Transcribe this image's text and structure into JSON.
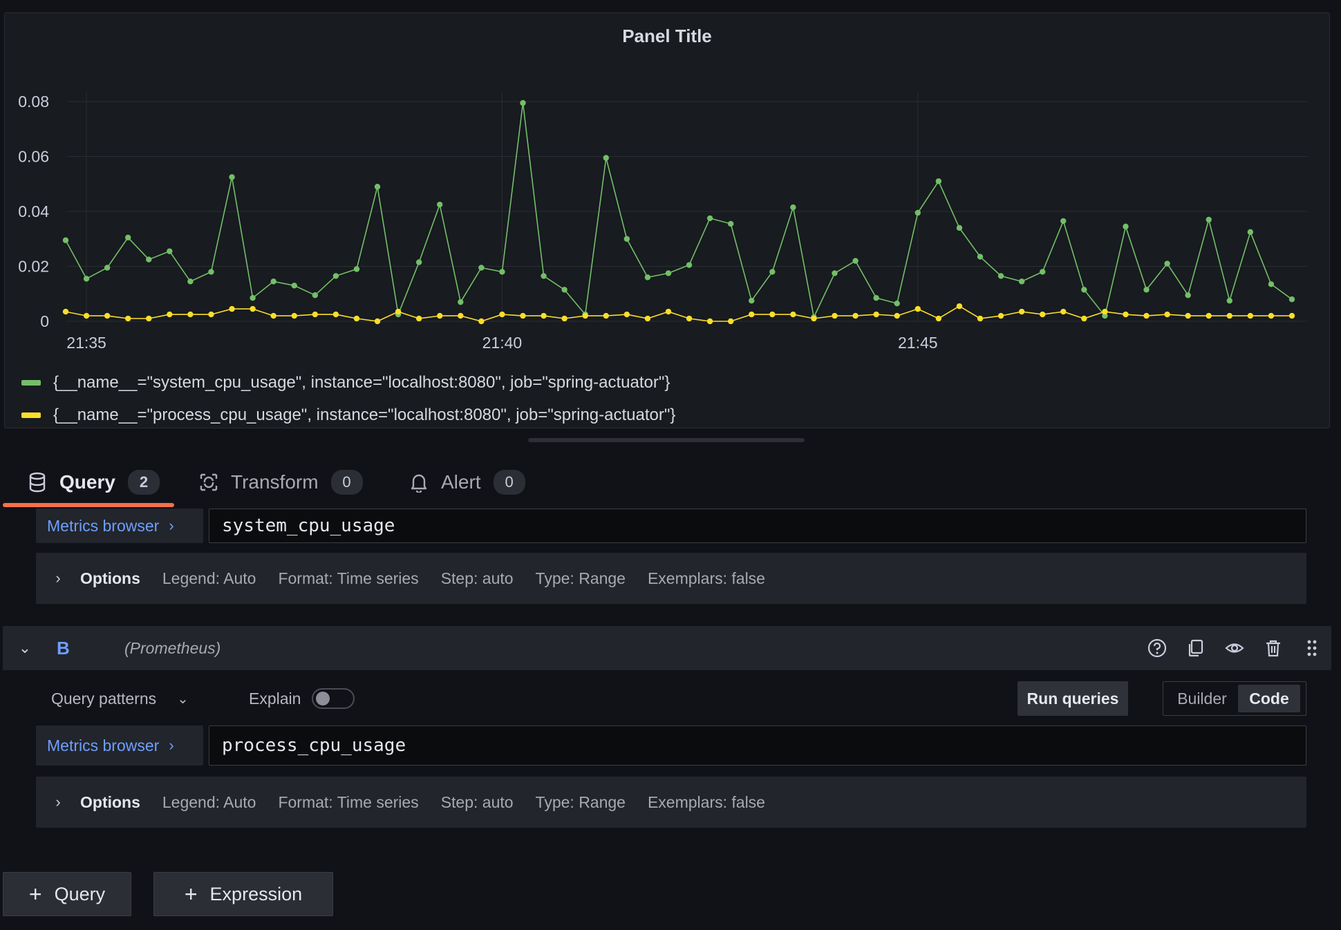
{
  "panel": {
    "title": "Panel Title"
  },
  "chart_data": {
    "type": "line",
    "title": "Panel Title",
    "ylim": [
      0,
      0.08
    ],
    "y_ticks": [
      "0",
      "0.02",
      "0.04",
      "0.06",
      "0.08"
    ],
    "x_ticks": [
      "21:35",
      "21:40",
      "21:45"
    ],
    "grid": true,
    "legend_placement": "bottom",
    "series": [
      {
        "name": "{__name__=\"system_cpu_usage\", instance=\"localhost:8080\", job=\"spring-actuator\"}",
        "color": "#73bf69",
        "values": [
          0.0295,
          0.0155,
          0.0195,
          0.0305,
          0.0225,
          0.0255,
          0.0145,
          0.018,
          0.0525,
          0.0085,
          0.0145,
          0.013,
          0.0095,
          0.0165,
          0.019,
          0.049,
          0.0025,
          0.0215,
          0.0425,
          0.007,
          0.0195,
          0.018,
          0.0795,
          0.0165,
          0.0115,
          0.0025,
          0.0595,
          0.03,
          0.016,
          0.0175,
          0.0205,
          0.0375,
          0.0355,
          0.0075,
          0.018,
          0.0415,
          0.0015,
          0.0175,
          0.022,
          0.0085,
          0.0065,
          0.0395,
          0.051,
          0.034,
          0.0235,
          0.0165,
          0.0145,
          0.018,
          0.0365,
          0.0115,
          0.002,
          0.0345,
          0.0115,
          0.021,
          0.0095,
          0.037,
          0.0075,
          0.0325,
          0.0135,
          0.008
        ]
      },
      {
        "name": "{__name__=\"process_cpu_usage\", instance=\"localhost:8080\", job=\"spring-actuator\"}",
        "color": "#fade2a",
        "values": [
          0.0035,
          0.002,
          0.002,
          0.001,
          0.001,
          0.0025,
          0.0025,
          0.0025,
          0.0045,
          0.0045,
          0.002,
          0.002,
          0.0025,
          0.0025,
          0.001,
          0.0,
          0.0035,
          0.001,
          0.002,
          0.002,
          0.0,
          0.0025,
          0.002,
          0.002,
          0.001,
          0.002,
          0.002,
          0.0025,
          0.001,
          0.0035,
          0.001,
          0.0,
          0.0,
          0.0025,
          0.0025,
          0.0025,
          0.001,
          0.002,
          0.002,
          0.0025,
          0.002,
          0.0045,
          0.001,
          0.0055,
          0.001,
          0.002,
          0.0035,
          0.0025,
          0.0035,
          0.001,
          0.0035,
          0.0025,
          0.002,
          0.0025,
          0.002,
          0.002,
          0.002,
          0.002,
          0.002,
          0.002
        ]
      }
    ]
  },
  "tabs": [
    {
      "label": "Query",
      "count": "2",
      "icon": "database-icon",
      "active": true
    },
    {
      "label": "Transform",
      "count": "0",
      "icon": "transform-icon",
      "active": false
    },
    {
      "label": "Alert",
      "count": "0",
      "icon": "bell-icon",
      "active": false
    }
  ],
  "query_a": {
    "metrics_browser": "Metrics browser",
    "expression": "system_cpu_usage",
    "options": {
      "label": "Options",
      "legend": "Legend: Auto",
      "format": "Format: Time series",
      "step": "Step: auto",
      "type": "Type: Range",
      "exemplars": "Exemplars: false"
    }
  },
  "query_b": {
    "ref_id": "B",
    "datasource": "(Prometheus)",
    "query_patterns": "Query patterns",
    "explain": "Explain",
    "explain_on": false,
    "run_queries": "Run queries",
    "mode_builder": "Builder",
    "mode_code": "Code",
    "mode_selected": "Code",
    "metrics_browser": "Metrics browser",
    "expression": "process_cpu_usage",
    "options": {
      "label": "Options",
      "legend": "Legend: Auto",
      "format": "Format: Time series",
      "step": "Step: auto",
      "type": "Type: Range",
      "exemplars": "Exemplars: false"
    }
  },
  "actions": {
    "add_query": "Query",
    "add_expression": "Expression"
  }
}
